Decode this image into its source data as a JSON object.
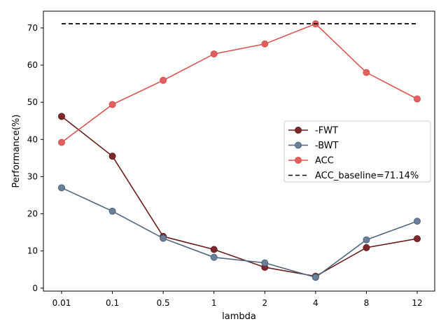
{
  "chart_data": {
    "type": "line",
    "categories": [
      "0.01",
      "0.1",
      "0.5",
      "1",
      "2",
      "4",
      "8",
      "12"
    ],
    "xlabel": "lambda",
    "ylabel": "Performance(%)",
    "ylim": [
      -0.8,
      74.5
    ],
    "yticks": [
      0,
      10,
      20,
      30,
      40,
      50,
      60,
      70
    ],
    "grid": false,
    "legend_position": "right",
    "series": [
      {
        "name": "-FWT",
        "values": [
          46.2,
          35.5,
          13.9,
          10.4,
          5.6,
          3.2,
          10.9,
          13.3
        ],
        "color": "#6b1c1c",
        "marker_color": "#7a2a2a",
        "dashed": false,
        "markers": true
      },
      {
        "name": "-BWT",
        "values": [
          27.0,
          20.7,
          13.4,
          8.3,
          6.8,
          2.9,
          13.0,
          18.0
        ],
        "color": "#4f6680",
        "marker_color": "#6a7f98",
        "dashed": false,
        "markers": true
      },
      {
        "name": "ACC",
        "values": [
          39.2,
          49.4,
          55.9,
          63.0,
          65.7,
          71.1,
          58.0,
          50.9
        ],
        "color": "#d9534f",
        "marker_color": "#e06060",
        "dashed": false,
        "markers": true
      },
      {
        "name": "ACC_baseline=71.14%",
        "values": [
          71.14,
          71.14,
          71.14,
          71.14,
          71.14,
          71.14,
          71.14,
          71.14
        ],
        "color": "#000000",
        "dashed": true,
        "markers": false
      }
    ]
  }
}
